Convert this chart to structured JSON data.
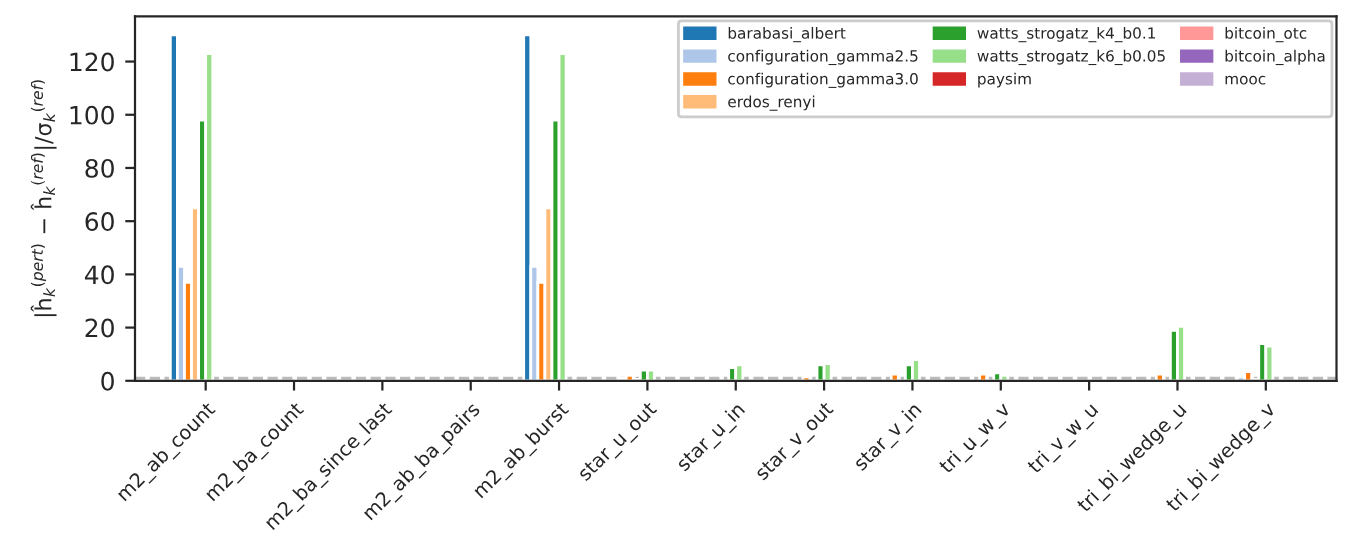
{
  "chart_data": {
    "type": "bar",
    "ylabel": "|ĥ$_{k}$$^{(pert)}$ − ĥ$_{k}$$^{(ref)}$|/σ$_{k}$$^{(ref)}$",
    "categories": [
      "m2_ab_count",
      "m2_ba_count",
      "m2_ba_since_last",
      "m2_ab_ba_pairs",
      "m2_ab_burst",
      "star_u_out",
      "star_u_in",
      "star_v_out",
      "star_v_in",
      "tri_u_w_v",
      "tri_v_w_u",
      "tri_bi_wedge_u",
      "tri_bi_wedge_v"
    ],
    "series": [
      {
        "name": "barabasi_albert",
        "color": "#1f77b4",
        "values": [
          130,
          null,
          null,
          null,
          130,
          null,
          null,
          null,
          null,
          null,
          null,
          null,
          null
        ]
      },
      {
        "name": "configuration_gamma2.5",
        "color": "#aec7e8",
        "values": [
          43,
          null,
          null,
          null,
          43,
          1,
          null,
          null,
          null,
          null,
          null,
          null,
          1.5
        ]
      },
      {
        "name": "configuration_gamma3.0",
        "color": "#ff7f0e",
        "values": [
          37,
          null,
          null,
          null,
          37,
          2,
          null,
          1.5,
          2.5,
          2.5,
          null,
          2.5,
          3.5
        ]
      },
      {
        "name": "erdos_renyi",
        "color": "#ffbb78",
        "values": [
          65,
          null,
          null,
          null,
          65,
          0.5,
          null,
          null,
          null,
          null,
          null,
          null,
          0.5
        ]
      },
      {
        "name": "watts_strogatz_k4_b0.1",
        "color": "#2ca02c",
        "values": [
          98,
          null,
          null,
          null,
          98,
          4,
          5,
          6,
          6,
          3,
          null,
          19,
          14
        ]
      },
      {
        "name": "watts_strogatz_k6_b0.05",
        "color": "#98df8a",
        "values": [
          123,
          null,
          null,
          null,
          123,
          4,
          6,
          6.5,
          8,
          2,
          null,
          20.5,
          13
        ]
      },
      {
        "name": "paysim",
        "color": "#d62728",
        "values": [
          null,
          null,
          null,
          null,
          null,
          null,
          null,
          null,
          null,
          null,
          null,
          null,
          null
        ]
      },
      {
        "name": "bitcoin_otc",
        "color": "#ff9896",
        "values": [
          null,
          null,
          null,
          null,
          null,
          null,
          null,
          null,
          null,
          null,
          null,
          null,
          null
        ]
      },
      {
        "name": "bitcoin_alpha",
        "color": "#9467bd",
        "values": [
          null,
          null,
          null,
          null,
          null,
          null,
          null,
          null,
          null,
          null,
          null,
          null,
          null
        ]
      },
      {
        "name": "mooc",
        "color": "#c5b0d5",
        "values": [
          null,
          null,
          null,
          null,
          null,
          null,
          null,
          null,
          null,
          null,
          null,
          null,
          null
        ]
      }
    ],
    "ylim": [
      0,
      137
    ],
    "yticks": [
      0,
      20,
      40,
      60,
      80,
      100,
      120
    ],
    "ref_lines": [
      {
        "axis": "y",
        "value": 1,
        "color": "#bbbbbb",
        "line_style": "dashed"
      }
    ],
    "grid": false,
    "legend": "top right"
  }
}
